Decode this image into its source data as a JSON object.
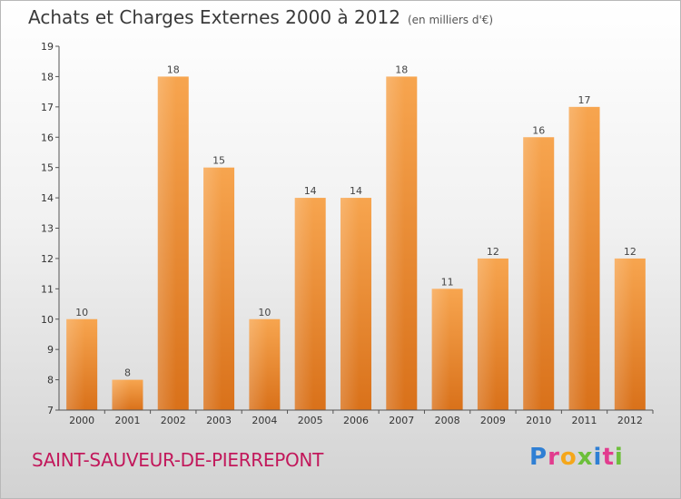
{
  "header": {
    "title": "Achats et Charges Externes 2000 à 2012",
    "subtitle": "(en milliers d'€)"
  },
  "footer": {
    "location": "SAINT-SAUVEUR-DE-PIERREPONT",
    "brand": [
      "P",
      "r",
      "o",
      "x",
      "i",
      "t",
      "i"
    ],
    "brand_colors": [
      "#2f7fd4",
      "#e23c8e",
      "#f5a71b",
      "#6cbf3a",
      "#2f7fd4",
      "#e23c8e",
      "#6cbf3a"
    ]
  },
  "chart_data": {
    "type": "bar",
    "categories": [
      "2000",
      "2001",
      "2002",
      "2003",
      "2004",
      "2005",
      "2006",
      "2007",
      "2008",
      "2009",
      "2010",
      "2011",
      "2012"
    ],
    "values": [
      10,
      8,
      18,
      15,
      10,
      14,
      14,
      18,
      11,
      12,
      16,
      17,
      12
    ],
    "ylim": [
      7,
      19
    ],
    "yticks": [
      7,
      8,
      9,
      10,
      11,
      12,
      13,
      14,
      15,
      16,
      17,
      18,
      19
    ],
    "grid": false,
    "bar_color": "#f0923a"
  }
}
